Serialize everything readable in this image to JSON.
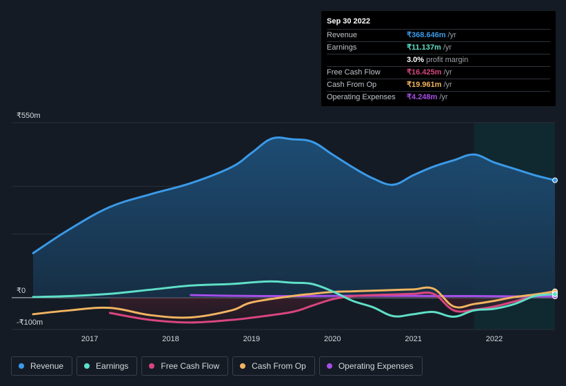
{
  "tooltip": {
    "date": "Sep 30 2022",
    "rows": [
      {
        "label": "Revenue",
        "value": "₹368.646m",
        "unit": "/yr",
        "color": "#3b9ae8"
      },
      {
        "label": "Earnings",
        "value": "₹11.137m",
        "unit": "/yr",
        "color": "#5fe0c8"
      },
      {
        "label": "",
        "value": "3.0%",
        "unit": "profit margin",
        "color": "#ffffff"
      },
      {
        "label": "Free Cash Flow",
        "value": "₹16.425m",
        "unit": "/yr",
        "color": "#d9467f"
      },
      {
        "label": "Cash From Op",
        "value": "₹19.961m",
        "unit": "/yr",
        "color": "#f1b461"
      },
      {
        "label": "Operating Expenses",
        "value": "₹4.248m",
        "unit": "/yr",
        "color": "#a64ee8"
      }
    ]
  },
  "legend": [
    {
      "label": "Revenue",
      "color": "#3b9ae8"
    },
    {
      "label": "Earnings",
      "color": "#5fe0c8"
    },
    {
      "label": "Free Cash Flow",
      "color": "#d9467f"
    },
    {
      "label": "Cash From Op",
      "color": "#f1b461"
    },
    {
      "label": "Operating Expenses",
      "color": "#a64ee8"
    }
  ],
  "chart_data": {
    "type": "area",
    "title": "",
    "xlabel": "",
    "ylabel": "",
    "y_tick_labels": [
      "₹550m",
      "₹0",
      "-₹100m"
    ],
    "ylim": [
      -100,
      550
    ],
    "xlim": [
      2016.3,
      2022.75
    ],
    "x_tick_labels": [
      "2017",
      "2018",
      "2019",
      "2020",
      "2021",
      "2022"
    ],
    "x_ticks": [
      2017,
      2018,
      2019,
      2020,
      2021,
      2022
    ],
    "forecast_shade_start": 2021.75,
    "grid": true,
    "legend_position": "bottom",
    "series": [
      {
        "name": "Revenue",
        "color": "#3b9ae8",
        "x": [
          2016.3,
          2016.75,
          2017.25,
          2017.75,
          2018.25,
          2018.75,
          2019.0,
          2019.25,
          2019.5,
          2019.75,
          2020.0,
          2020.25,
          2020.5,
          2020.75,
          2021.0,
          2021.25,
          2021.5,
          2021.75,
          2022.0,
          2022.25,
          2022.5,
          2022.75
        ],
        "values": [
          140,
          215,
          285,
          325,
          360,
          410,
          455,
          500,
          498,
          490,
          450,
          410,
          375,
          355,
          385,
          412,
          432,
          450,
          425,
          405,
          385,
          369
        ]
      },
      {
        "name": "Earnings",
        "color": "#5fe0c8",
        "x": [
          2016.3,
          2016.75,
          2017.25,
          2017.75,
          2018.25,
          2018.75,
          2019.0,
          2019.25,
          2019.5,
          2019.75,
          2020.0,
          2020.25,
          2020.5,
          2020.75,
          2021.0,
          2021.25,
          2021.5,
          2021.75,
          2022.0,
          2022.25,
          2022.5,
          2022.75
        ],
        "values": [
          2,
          5,
          12,
          25,
          38,
          43,
          48,
          51,
          47,
          43,
          20,
          -10,
          -30,
          -58,
          -52,
          -45,
          -60,
          -40,
          -35,
          -20,
          5,
          11
        ]
      },
      {
        "name": "Free Cash Flow",
        "color": "#d9467f",
        "x": [
          2017.25,
          2017.75,
          2018.25,
          2018.75,
          2019.0,
          2019.5,
          2019.75,
          2020.0,
          2020.25,
          2020.5,
          2020.75,
          2021.0,
          2021.25,
          2021.5,
          2021.75,
          2022.0,
          2022.25,
          2022.5,
          2022.75
        ],
        "values": [
          -48,
          -70,
          -78,
          -70,
          -63,
          -45,
          -25,
          -5,
          5,
          8,
          10,
          12,
          12,
          -40,
          -38,
          -28,
          -12,
          5,
          16
        ]
      },
      {
        "name": "Cash From Op",
        "color": "#f1b461",
        "x": [
          2016.3,
          2016.75,
          2017.25,
          2017.75,
          2018.25,
          2018.75,
          2019.0,
          2019.5,
          2019.75,
          2020.0,
          2020.25,
          2020.5,
          2020.75,
          2021.0,
          2021.25,
          2021.5,
          2021.75,
          2022.0,
          2022.25,
          2022.5,
          2022.75
        ],
        "values": [
          -52,
          -40,
          -32,
          -55,
          -62,
          -40,
          -15,
          5,
          12,
          18,
          20,
          22,
          24,
          26,
          28,
          -28,
          -20,
          -10,
          2,
          10,
          20
        ]
      },
      {
        "name": "Operating Expenses",
        "color": "#a64ee8",
        "x": [
          2018.25,
          2018.75,
          2019.25,
          2019.75,
          2020.25,
          2020.75,
          2021.25,
          2021.75,
          2022.25,
          2022.75
        ],
        "values": [
          8,
          6,
          5,
          5,
          6,
          6,
          5,
          5,
          4,
          4
        ]
      }
    ]
  }
}
